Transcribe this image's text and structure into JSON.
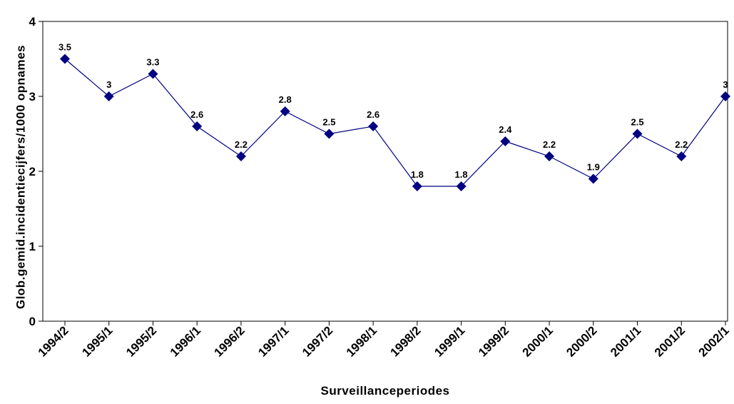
{
  "chart_data": {
    "type": "line",
    "x_label": "Surveillanceperiodes",
    "y_label": "Glob.gemid.incidentiecijfers/1000 opnames",
    "categories": [
      "1994/2",
      "1995/1",
      "1995/2",
      "1996/1",
      "1996/2",
      "1997/1",
      "1997/2",
      "1998/1",
      "1998/2",
      "1999/1",
      "1999/2",
      "2000/1",
      "2000/2",
      "2001/1",
      "2001/2",
      "2002/1"
    ],
    "series": [
      {
        "color": "#000080",
        "values": [
          3.5,
          3,
          3.3,
          2.6,
          2.2,
          2.8,
          2.5,
          2.6,
          1.8,
          1.8,
          2.4,
          2.2,
          1.9,
          2.5,
          2.2,
          3
        ]
      }
    ],
    "ylim": [
      0,
      4
    ],
    "yticks": [
      0,
      1,
      2,
      3,
      4
    ],
    "grid": false
  }
}
